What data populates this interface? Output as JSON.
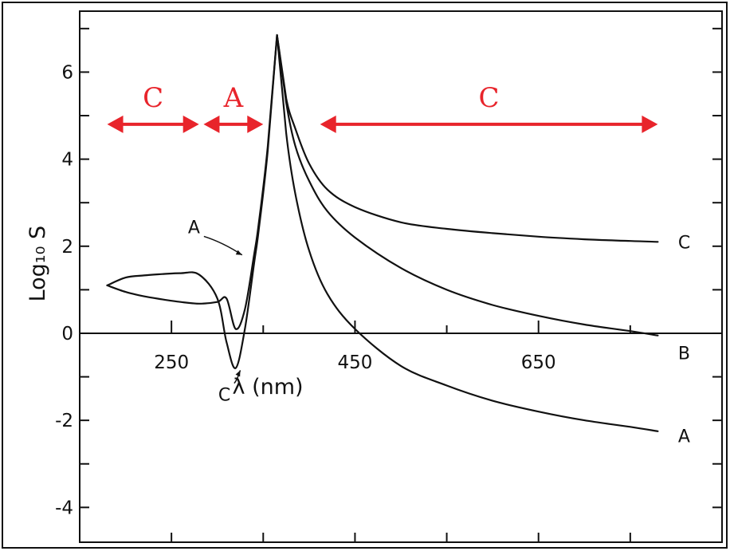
{
  "chart_data": {
    "type": "line",
    "xlabel": "λ (nm)",
    "ylabel": "Log₁₀ S",
    "xlim": [
      150,
      850
    ],
    "ylim": [
      -4.8,
      7.4
    ],
    "x_ticks_labeled": [
      250,
      450,
      650
    ],
    "x_ticks_minor": [
      350,
      550,
      750
    ],
    "y_ticks_labeled": [
      {
        "value": 6,
        "label": "6"
      },
      {
        "value": 4,
        "label": "4"
      },
      {
        "value": 2,
        "label": "2"
      },
      {
        "value": 0,
        "label": "0"
      },
      {
        "value": -2,
        "label": "-2"
      },
      {
        "value": -4,
        "label": "-4"
      }
    ],
    "y_ticks_minor": [
      7,
      5,
      3,
      1,
      -1,
      -3
    ],
    "grid": false,
    "series": [
      {
        "name": "A",
        "x": [
          180,
          200,
          220,
          240,
          260,
          280,
          300,
          310,
          320,
          330,
          340,
          345,
          355,
          365,
          375,
          385,
          400,
          420,
          450,
          500,
          550,
          600,
          650,
          700,
          750,
          780
        ],
        "y": [
          1.1,
          0.95,
          0.85,
          0.78,
          0.72,
          0.68,
          0.72,
          0.8,
          0.1,
          0.55,
          1.8,
          2.5,
          4.3,
          6.85,
          4.6,
          3.2,
          1.9,
          0.9,
          0.1,
          -0.75,
          -1.2,
          -1.55,
          -1.8,
          -2.0,
          -2.15,
          -2.25
        ]
      },
      {
        "name": "B",
        "x": [
          365,
          375,
          385,
          400,
          420,
          450,
          500,
          550,
          600,
          650,
          700,
          750,
          780
        ],
        "y": [
          6.85,
          5.3,
          4.3,
          3.5,
          2.8,
          2.2,
          1.5,
          1.0,
          0.65,
          0.4,
          0.2,
          0.05,
          -0.05
        ]
      },
      {
        "name": "C",
        "x": [
          180,
          200,
          220,
          240,
          260,
          280,
          300,
          310,
          320,
          330,
          340,
          345,
          355,
          365,
          375,
          385,
          400,
          420,
          450,
          500,
          550,
          600,
          650,
          700,
          750,
          780
        ],
        "y": [
          1.1,
          1.28,
          1.33,
          1.36,
          1.38,
          1.35,
          0.8,
          -0.2,
          -0.8,
          0.1,
          1.6,
          2.35,
          4.2,
          6.85,
          5.4,
          4.7,
          3.9,
          3.3,
          2.9,
          2.55,
          2.4,
          2.3,
          2.22,
          2.16,
          2.12,
          2.1
        ]
      }
    ],
    "curve_labels": [
      {
        "text": "C",
        "x": 790,
        "y": 2.1
      },
      {
        "text": "B",
        "x": 790,
        "y": -0.45
      },
      {
        "text": "A",
        "x": 790,
        "y": -2.35
      }
    ],
    "annotations": [
      {
        "text": "A",
        "x": 301,
        "y": 2.3,
        "arrow_to": [
          327,
          1.8
        ]
      },
      {
        "text": "C",
        "x": 334,
        "y": -1.55,
        "arrow_to": [
          325,
          -0.85
        ]
      }
    ],
    "regions": [
      {
        "label": "C",
        "x_start": 180,
        "x_end": 280
      },
      {
        "label": "A",
        "x_start": 285,
        "x_end": 350
      },
      {
        "label": "C",
        "x_start": 412,
        "x_end": 780
      }
    ],
    "region_y": 4.8,
    "region_color": "#e8242b"
  }
}
